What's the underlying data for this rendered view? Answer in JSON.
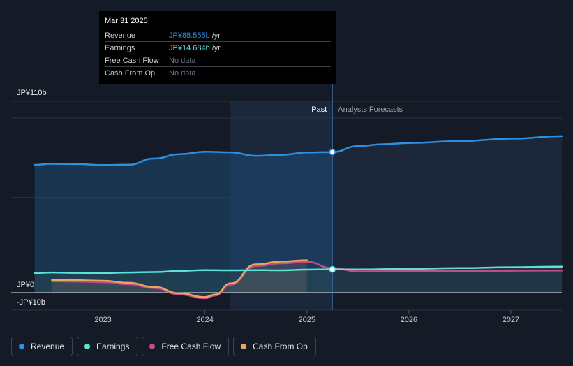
{
  "chart_data": {
    "type": "area",
    "y_axis": {
      "ticks": [
        {
          "value": 110,
          "label": "JP¥110b"
        },
        {
          "value": 0,
          "label": "JP¥0"
        },
        {
          "value": -10,
          "label": "-JP¥10b"
        }
      ],
      "ylim": [
        -10,
        110
      ],
      "grid": true
    },
    "x_axis": {
      "ticks": [
        {
          "value": 2023,
          "label": "2023"
        },
        {
          "value": 2024,
          "label": "2024"
        },
        {
          "value": 2025,
          "label": "2025"
        },
        {
          "value": 2026,
          "label": "2026"
        },
        {
          "value": 2027,
          "label": "2027"
        }
      ],
      "xlim": [
        2022.1,
        2027.5
      ]
    },
    "divider": {
      "x": 2025.25,
      "past_label": "Past",
      "forecast_label": "Analysts Forecasts"
    },
    "highlight_range": [
      2024.25,
      2025.25
    ],
    "series": [
      {
        "name": "Revenue",
        "color": "#2d8fdf",
        "points": [
          [
            2022.33,
            80.5
          ],
          [
            2022.5,
            81.2
          ],
          [
            2022.75,
            81.0
          ],
          [
            2023.0,
            80.4
          ],
          [
            2023.25,
            80.6
          ],
          [
            2023.5,
            84.5
          ],
          [
            2023.75,
            87.2
          ],
          [
            2024.0,
            88.8
          ],
          [
            2024.25,
            88.4
          ],
          [
            2024.5,
            86.2
          ],
          [
            2024.75,
            86.8
          ],
          [
            2025.0,
            88.3
          ],
          [
            2025.25,
            88.555
          ],
          [
            2025.5,
            92.3
          ],
          [
            2025.75,
            93.5
          ],
          [
            2026.0,
            94.3
          ],
          [
            2026.5,
            95.5
          ],
          [
            2027.0,
            97.0
          ],
          [
            2027.5,
            98.6
          ]
        ]
      },
      {
        "name": "Earnings",
        "color": "#5be4d6",
        "points": [
          [
            2022.33,
            12.4
          ],
          [
            2022.5,
            12.7
          ],
          [
            2022.75,
            12.5
          ],
          [
            2023.0,
            12.3
          ],
          [
            2023.25,
            12.7
          ],
          [
            2023.5,
            13.0
          ],
          [
            2023.75,
            13.7
          ],
          [
            2024.0,
            14.2
          ],
          [
            2024.25,
            14.1
          ],
          [
            2024.5,
            14.2
          ],
          [
            2024.75,
            14.1
          ],
          [
            2025.0,
            14.5
          ],
          [
            2025.25,
            14.684
          ],
          [
            2025.5,
            14.6
          ],
          [
            2026.0,
            15.0
          ],
          [
            2026.5,
            15.5
          ],
          [
            2027.0,
            16.0
          ],
          [
            2027.5,
            16.4
          ]
        ]
      },
      {
        "name": "Free Cash Flow",
        "color": "#c74a8a",
        "points": [
          [
            2022.5,
            7.2
          ],
          [
            2022.75,
            7.0
          ],
          [
            2023.0,
            6.6
          ],
          [
            2023.25,
            5.3
          ],
          [
            2023.5,
            2.9
          ],
          [
            2023.75,
            -1.1
          ],
          [
            2024.0,
            -3.5
          ],
          [
            2024.1,
            -1.8
          ],
          [
            2024.25,
            5.0
          ],
          [
            2024.5,
            16.8
          ],
          [
            2024.75,
            18.5
          ],
          [
            2025.0,
            19.4
          ],
          [
            2025.25,
            15.5
          ],
          [
            2025.5,
            13.4
          ],
          [
            2026.0,
            13.5
          ],
          [
            2026.5,
            13.7
          ],
          [
            2027.0,
            13.8
          ],
          [
            2027.5,
            14.0
          ]
        ]
      },
      {
        "name": "Cash From Op",
        "color": "#e9a660",
        "points": [
          [
            2022.5,
            7.9
          ],
          [
            2022.75,
            7.8
          ],
          [
            2023.0,
            7.5
          ],
          [
            2023.25,
            6.2
          ],
          [
            2023.5,
            3.6
          ],
          [
            2023.75,
            -0.4
          ],
          [
            2024.0,
            -2.8
          ],
          [
            2024.1,
            -1.2
          ],
          [
            2024.25,
            5.8
          ],
          [
            2024.5,
            17.8
          ],
          [
            2024.75,
            19.6
          ],
          [
            2025.0,
            20.4
          ]
        ]
      }
    ],
    "grid": true,
    "legend_position": "bottom-left"
  },
  "tooltip": {
    "date": "Mar 31 2025",
    "rows": [
      {
        "label": "Revenue",
        "value": "JP¥88.555b",
        "unit": "/yr",
        "color": "#2d8fdf"
      },
      {
        "label": "Earnings",
        "value": "JP¥14.684b",
        "unit": "/yr",
        "color": "#5be4d6"
      },
      {
        "label": "Free Cash Flow",
        "value": "No data",
        "unit": "",
        "color": ""
      },
      {
        "label": "Cash From Op",
        "value": "No data",
        "unit": "",
        "color": ""
      }
    ]
  },
  "legend": [
    {
      "label": "Revenue",
      "color": "#2d8fdf"
    },
    {
      "label": "Earnings",
      "color": "#5be4d6"
    },
    {
      "label": "Free Cash Flow",
      "color": "#c74a8a"
    },
    {
      "label": "Cash From Op",
      "color": "#e9a660"
    }
  ]
}
